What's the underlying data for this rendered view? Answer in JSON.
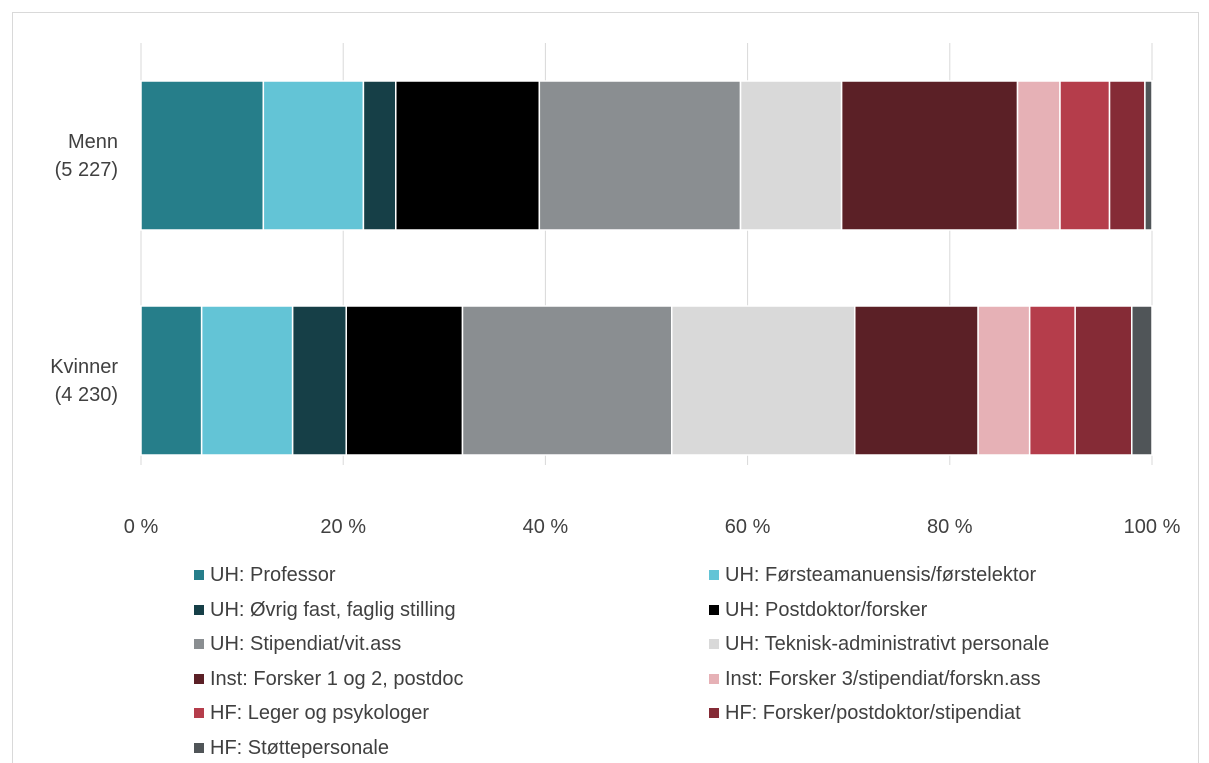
{
  "chart_data": {
    "type": "stacked-barh",
    "categories": [
      "Menn\n(5 227)",
      "Kvinner\n(4 230)"
    ],
    "series": [
      {
        "name": "UH: Professor",
        "color": "#267e8a",
        "values": [
          12.1,
          6.0
        ]
      },
      {
        "name": "UH: Førsteamanuensis/førstelektor",
        "color": "#63c4d6",
        "values": [
          9.9,
          9.0
        ]
      },
      {
        "name": "UH: Øvrig fast, faglig stilling",
        "color": "#163f47",
        "values": [
          3.2,
          5.3
        ]
      },
      {
        "name": "UH: Postdoktor/forsker",
        "color": "#000000",
        "values": [
          14.2,
          11.5
        ]
      },
      {
        "name": "UH: Stipendiat/vit.ass",
        "color": "#8a8e91",
        "values": [
          19.9,
          20.7
        ]
      },
      {
        "name": "UH: Teknisk-administrativt personale",
        "color": "#d9d9d9",
        "values": [
          10.0,
          18.1
        ]
      },
      {
        "name": "Inst: Forsker 1 og 2, postdoc",
        "color": "#5b2026",
        "values": [
          17.4,
          12.2
        ]
      },
      {
        "name": "Inst: Forsker 3/stipendiat/forskn.ass",
        "color": "#e6b1b6",
        "values": [
          4.2,
          5.1
        ]
      },
      {
        "name": "HF: Leger og psykologer",
        "color": "#b53d4b",
        "values": [
          4.9,
          4.5
        ]
      },
      {
        "name": "HF: Forsker/postdoktor/stipendiat",
        "color": "#852b36",
        "values": [
          3.5,
          5.6
        ]
      },
      {
        "name": "HF: Støttepersonale",
        "color": "#505558",
        "values": [
          0.7,
          2.0
        ]
      }
    ],
    "xlim": [
      0,
      100
    ],
    "xticks": [
      {
        "value": 0,
        "label": "0 %"
      },
      {
        "value": 20,
        "label": "20 %"
      },
      {
        "value": 40,
        "label": "40 %"
      },
      {
        "value": 60,
        "label": "60 %"
      },
      {
        "value": 80,
        "label": "80 %"
      },
      {
        "value": 100,
        "label": "100 %"
      }
    ],
    "grid": true,
    "legend": "bottom"
  }
}
